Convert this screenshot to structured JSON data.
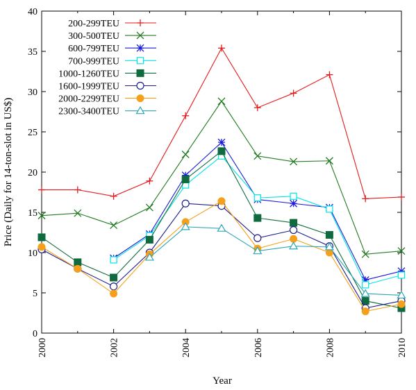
{
  "chart_data": {
    "type": "line",
    "title": "",
    "xlabel": "Year",
    "ylabel": "Price (Daily for 14-ton-slot in US$)",
    "xlim": [
      2000,
      2010
    ],
    "ylim": [
      0,
      40
    ],
    "xticks": [
      2000,
      2002,
      2004,
      2006,
      2008,
      2010
    ],
    "yticks": [
      0,
      5,
      10,
      15,
      20,
      25,
      30,
      35,
      40
    ],
    "grid": false,
    "legend_position": "top-left",
    "x": [
      2000,
      2001,
      2002,
      2003,
      2004,
      2005,
      2006,
      2007,
      2008,
      2009,
      2010
    ],
    "series": [
      {
        "name": "200-299TEU",
        "color": "#e41a1c",
        "marker": "plus",
        "values": [
          17.8,
          17.8,
          17.0,
          18.9,
          27.0,
          35.4,
          28.0,
          29.8,
          32.1,
          16.7,
          16.9
        ]
      },
      {
        "name": "300-500TEU",
        "color": "#1f7a1f",
        "marker": "cross",
        "values": [
          14.6,
          14.9,
          13.4,
          15.6,
          22.2,
          28.8,
          22.0,
          21.3,
          21.4,
          9.8,
          10.2
        ]
      },
      {
        "name": "600-799TEU",
        "color": "#1a1adc",
        "marker": "star",
        "values": [
          null,
          null,
          9.3,
          12.3,
          19.6,
          23.7,
          16.6,
          16.1,
          15.6,
          6.6,
          7.7
        ]
      },
      {
        "name": "700-999TEU",
        "color": "#00e5e5",
        "marker": "square-open",
        "values": [
          null,
          null,
          9.1,
          12.1,
          18.4,
          22.0,
          16.8,
          17.0,
          15.4,
          6.0,
          7.2
        ]
      },
      {
        "name": "1000-1260TEU",
        "color": "#0f6b3d",
        "marker": "square-filled",
        "values": [
          11.9,
          8.8,
          6.9,
          11.6,
          19.1,
          22.6,
          14.3,
          13.7,
          12.2,
          4.0,
          3.1
        ]
      },
      {
        "name": "1600-1999TEU",
        "color": "#1c1c8c",
        "marker": "circle-open",
        "values": [
          10.4,
          8.0,
          5.8,
          10.0,
          16.1,
          15.8,
          11.8,
          12.8,
          10.8,
          3.1,
          4.0
        ]
      },
      {
        "name": "2000-2299TEU",
        "color": "#f5a01a",
        "marker": "circle-filled",
        "values": [
          10.7,
          8.0,
          4.9,
          9.8,
          13.8,
          16.4,
          10.5,
          11.7,
          10.0,
          2.7,
          3.6
        ]
      },
      {
        "name": "2300-3400TEU",
        "color": "#2aa6b5",
        "marker": "triangle-open",
        "values": [
          null,
          null,
          null,
          9.4,
          13.2,
          13.0,
          10.2,
          10.8,
          10.7,
          4.9,
          4.7
        ]
      }
    ]
  }
}
